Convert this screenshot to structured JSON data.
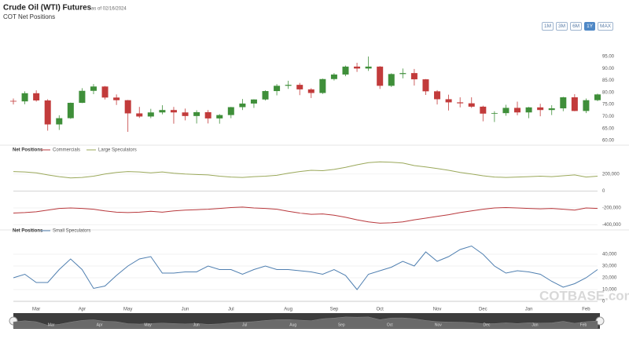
{
  "header": {
    "title": "Crude Oil (WTI) Futures",
    "as_of": "as of 02/16/2024",
    "subtitle": "COT Net Positions"
  },
  "buttons": [
    "1M",
    "3M",
    "6M",
    "1Y",
    "MAX"
  ],
  "active_button": 3,
  "watermark": "COTBASE.com",
  "navigator": {
    "labels": [
      "Mar",
      "Apr",
      "May",
      "Jun",
      "Jul",
      "Aug",
      "Sep",
      "Oct",
      "Nov",
      "Dec",
      "Jan",
      "Feb"
    ]
  },
  "chart_data": [
    {
      "type": "candlestick",
      "up_color": "#3f8f3a",
      "down_color": "#c23b3b",
      "open": [
        76.5,
        76.3,
        79.7,
        76.7,
        66.7,
        69.3,
        75.7,
        80.7,
        82.5,
        77.9,
        76.8,
        71.3,
        70.0,
        71.7,
        72.7,
        71.7,
        70.2,
        71.8,
        69.2,
        70.6,
        73.9,
        75.4,
        77.1,
        80.6,
        82.8,
        83.2,
        81.3,
        79.8,
        85.6,
        87.5,
        90.8,
        90.0,
        90.8,
        82.8,
        87.7,
        88.1,
        85.5,
        80.5,
        77.2,
        75.9,
        75.5,
        74.1,
        71.2,
        71.4,
        73.6,
        71.7,
        73.8,
        72.7,
        73.4,
        78.0,
        72.3,
        76.8
      ],
      "high": [
        77.5,
        80.5,
        80.9,
        77.2,
        70.5,
        75.8,
        81.8,
        83.5,
        82.7,
        79.2,
        76.9,
        74.0,
        73.2,
        74.7,
        74.0,
        73.3,
        72.6,
        72.7,
        71.0,
        74.0,
        77.3,
        77.2,
        80.9,
        83.5,
        84.9,
        84.0,
        81.8,
        85.8,
        88.1,
        91.2,
        92.4,
        95.0,
        91.0,
        88.0,
        90.0,
        89.8,
        85.6,
        81.0,
        79.1,
        78.0,
        78.0,
        74.5,
        72.2,
        74.9,
        76.2,
        74.0,
        75.3,
        74.7,
        78.2,
        79.3,
        77.5,
        79.5
      ],
      "low": [
        75.0,
        75.1,
        76.2,
        64.1,
        64.4,
        69.0,
        75.6,
        79.3,
        77.1,
        74.8,
        63.6,
        69.4,
        69.3,
        70.9,
        67.0,
        68.4,
        67.1,
        67.1,
        67.0,
        69.3,
        72.7,
        73.6,
        76.7,
        78.8,
        81.5,
        78.9,
        77.7,
        79.4,
        85.0,
        86.8,
        88.6,
        89.0,
        81.5,
        82.3,
        85.9,
        82.9,
        79.0,
        75.0,
        72.5,
        73.8,
        73.6,
        68.0,
        67.7,
        70.3,
        70.5,
        69.3,
        70.1,
        70.6,
        72.2,
        72.2,
        71.4,
        76.4
      ],
      "close": [
        76.3,
        79.7,
        76.7,
        66.7,
        69.3,
        75.7,
        80.7,
        82.5,
        77.9,
        76.8,
        71.3,
        70.0,
        71.7,
        72.7,
        71.7,
        70.2,
        71.8,
        69.2,
        70.6,
        73.9,
        75.4,
        77.1,
        80.6,
        82.8,
        83.2,
        81.3,
        79.8,
        85.6,
        87.5,
        90.8,
        90.0,
        90.8,
        82.8,
        87.7,
        88.1,
        85.5,
        80.5,
        77.2,
        75.9,
        75.5,
        74.1,
        71.2,
        71.4,
        73.6,
        71.7,
        73.8,
        72.7,
        73.4,
        78.0,
        72.3,
        76.8,
        79.2
      ],
      "ylim": [
        58.7,
        97.3
      ],
      "yticks": [
        {
          "value": 60,
          "label": "60.00"
        },
        {
          "value": 65,
          "label": "65.00"
        },
        {
          "value": 70,
          "label": "70.00"
        },
        {
          "value": 75,
          "label": "75.00"
        },
        {
          "value": 80,
          "label": "80.00"
        },
        {
          "value": 85,
          "label": "85.00"
        },
        {
          "value": 90,
          "label": "90.00"
        },
        {
          "value": 95,
          "label": "95.00"
        }
      ],
      "grid": false
    },
    {
      "type": "line",
      "title": "Net Positions",
      "series": [
        {
          "name": "Commercials",
          "color": "#b8383c",
          "values": [
            -260000,
            -255000,
            -245000,
            -225000,
            -205000,
            -200000,
            -205000,
            -215000,
            -235000,
            -250000,
            -255000,
            -250000,
            -240000,
            -250000,
            -235000,
            -225000,
            -220000,
            -215000,
            -205000,
            -195000,
            -190000,
            -200000,
            -205000,
            -215000,
            -240000,
            -260000,
            -275000,
            -270000,
            -285000,
            -310000,
            -340000,
            -365000,
            -380000,
            -375000,
            -365000,
            -340000,
            -320000,
            -300000,
            -280000,
            -255000,
            -235000,
            -215000,
            -200000,
            -195000,
            -200000,
            -205000,
            -210000,
            -205000,
            -215000,
            -225000,
            -200000,
            -205000
          ]
        },
        {
          "name": "Large Speculators",
          "color": "#9aa85a",
          "values": [
            230000,
            225000,
            215000,
            190000,
            170000,
            155000,
            160000,
            175000,
            200000,
            220000,
            230000,
            225000,
            215000,
            225000,
            210000,
            200000,
            195000,
            190000,
            175000,
            165000,
            160000,
            170000,
            175000,
            185000,
            210000,
            230000,
            245000,
            240000,
            255000,
            280000,
            310000,
            335000,
            345000,
            340000,
            330000,
            300000,
            285000,
            265000,
            245000,
            220000,
            200000,
            180000,
            165000,
            160000,
            165000,
            170000,
            175000,
            170000,
            180000,
            190000,
            165000,
            175000
          ]
        }
      ],
      "ylim": [
        -450000,
        430000
      ],
      "yticks": [
        {
          "value": -400000,
          "label": "-400,000"
        },
        {
          "value": -200000,
          "label": "-200,000"
        },
        0,
        {
          "value": 200000,
          "label": "200,000"
        }
      ],
      "grid": true
    },
    {
      "type": "line",
      "title": "Net Positions",
      "categories": [
        null,
        null,
        "Mar",
        null,
        null,
        null,
        "Apr",
        null,
        null,
        null,
        "May",
        null,
        null,
        null,
        null,
        "Jun",
        null,
        null,
        null,
        "Jul",
        null,
        null,
        null,
        null,
        "Aug",
        null,
        null,
        null,
        "Sep",
        null,
        null,
        null,
        "Oct",
        null,
        null,
        null,
        null,
        "Nov",
        null,
        null,
        null,
        "Dec",
        null,
        null,
        null,
        "Jan",
        null,
        null,
        null,
        null,
        "Feb",
        null
      ],
      "series": [
        {
          "name": "Small Speculators",
          "color": "#4f7fb0",
          "values": [
            20000,
            23000,
            16000,
            16000,
            27000,
            36000,
            27000,
            11000,
            13000,
            22000,
            30000,
            36000,
            38000,
            24000,
            24000,
            25000,
            25000,
            30000,
            27000,
            27000,
            23000,
            27000,
            30000,
            27000,
            27000,
            26000,
            25000,
            23000,
            27000,
            22000,
            10000,
            23000,
            26000,
            29000,
            34000,
            30000,
            42000,
            34000,
            38000,
            44000,
            47000,
            40000,
            30000,
            24000,
            26000,
            25000,
            23000,
            17000,
            12000,
            15000,
            20000,
            27000
          ]
        }
      ],
      "ylim": [
        -4000,
        56000
      ],
      "yticks": [
        0,
        {
          "value": 10000,
          "label": "10,000"
        },
        {
          "value": 20000,
          "label": "20,000"
        },
        {
          "value": 30000,
          "label": "30,000"
        },
        {
          "value": 40000,
          "label": "40,000"
        }
      ],
      "grid": true
    }
  ]
}
